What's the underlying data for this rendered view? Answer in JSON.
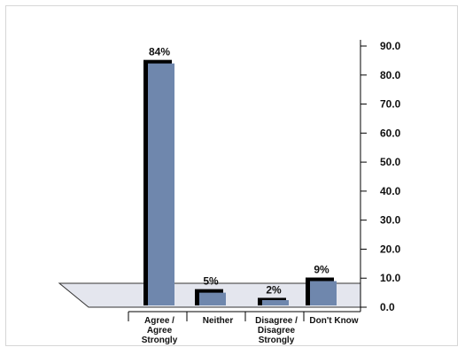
{
  "chart_data": {
    "type": "bar",
    "title": "",
    "xlabel": "",
    "ylabel": "",
    "categories": [
      "Agree / Agree Strongly",
      "Neither",
      "Disagree / Disagree Strongly",
      "Don't Know"
    ],
    "category_lines": [
      [
        "Agree /",
        "Agree",
        "Strongly"
      ],
      [
        "Neither"
      ],
      [
        "Disagree /",
        "Disagree",
        "Strongly"
      ],
      [
        "Don't Know"
      ]
    ],
    "values": [
      84,
      5,
      2,
      9
    ],
    "value_labels": [
      "84%",
      "5%",
      "2%",
      "9%"
    ],
    "ylim": [
      0,
      90
    ],
    "yticks": [
      "0.0",
      "10.0",
      "20.0",
      "30.0",
      "40.0",
      "50.0",
      "60.0",
      "70.0",
      "80.0",
      "90.0"
    ],
    "y_axis_position": "right",
    "grid": false,
    "legend": "none",
    "bar_color": "#6f87ad",
    "shadow_color": "#000000",
    "floor_color": "#e4e6ee"
  }
}
